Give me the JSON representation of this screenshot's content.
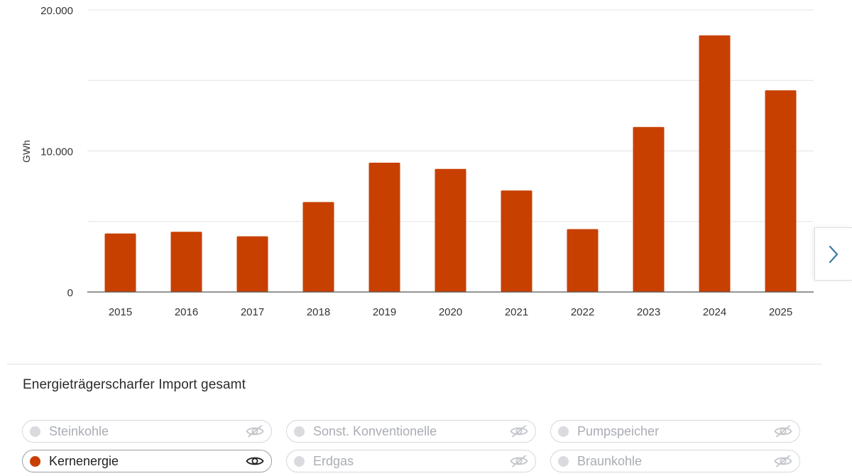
{
  "chart_data": {
    "type": "bar",
    "categories": [
      "2015",
      "2016",
      "2017",
      "2018",
      "2019",
      "2020",
      "2021",
      "2022",
      "2023",
      "2024",
      "2025"
    ],
    "series": [
      {
        "name": "Kernenergie",
        "values": [
          4150,
          4270,
          3950,
          6380,
          9170,
          8730,
          7200,
          4460,
          11700,
          18200,
          14300
        ]
      }
    ],
    "ylabel": "GWh",
    "ylim": [
      0,
      20000
    ],
    "yticks": [
      0,
      10000,
      20000
    ],
    "ytick_labels": [
      "0",
      "10.000",
      "20.000"
    ],
    "grid": true,
    "bar_color": "#c84000"
  },
  "legend": {
    "title": "Energieträgerscharfer Import gesamt",
    "items": [
      {
        "label": "Steinkohle",
        "active": false,
        "icon": "eye-slash-icon"
      },
      {
        "label": "Sonst. Konventionelle",
        "active": false,
        "icon": "eye-slash-icon"
      },
      {
        "label": "Pumpspeicher",
        "active": false,
        "icon": "eye-slash-icon"
      },
      {
        "label": "Kernenergie",
        "active": true,
        "icon": "eye-icon"
      },
      {
        "label": "Erdgas",
        "active": false,
        "icon": "eye-slash-icon"
      },
      {
        "label": "Braunkohle",
        "active": false,
        "icon": "eye-slash-icon"
      }
    ]
  },
  "navigation": {
    "next_icon": "chevron-right-icon"
  },
  "colors": {
    "accent": "#c84000",
    "inactive_dot": "#d9dbde",
    "grid": "#e3e3e3"
  }
}
